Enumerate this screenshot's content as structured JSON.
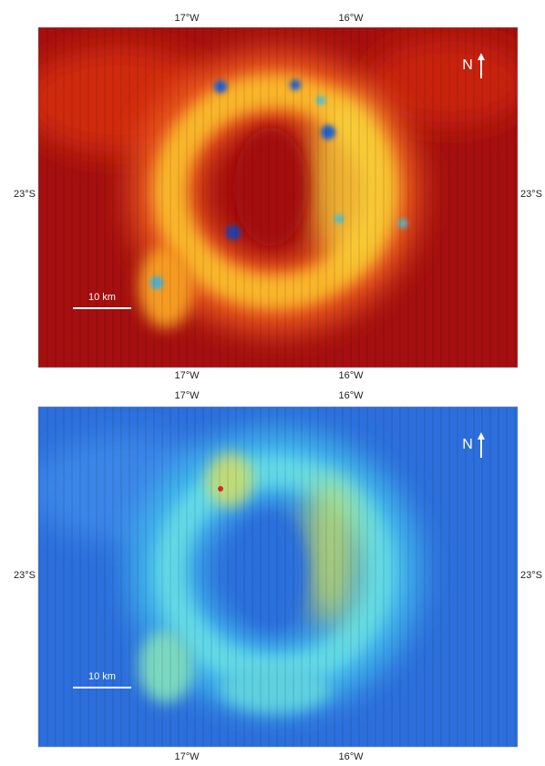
{
  "panels": [
    {
      "top_labels": [
        "17°W",
        "16°W"
      ],
      "bottom_labels": [
        "17°W",
        "16°W"
      ],
      "left_label": "23°S",
      "right_label": "23°S",
      "scale_bar": "10 km",
      "north": "N"
    },
    {
      "top_labels": [
        "17°W",
        "16°W"
      ],
      "bottom_labels": [
        "17°W",
        "16°W"
      ],
      "left_label": "23°S",
      "right_label": "23°S",
      "scale_bar": "10 km",
      "north": "N"
    }
  ]
}
